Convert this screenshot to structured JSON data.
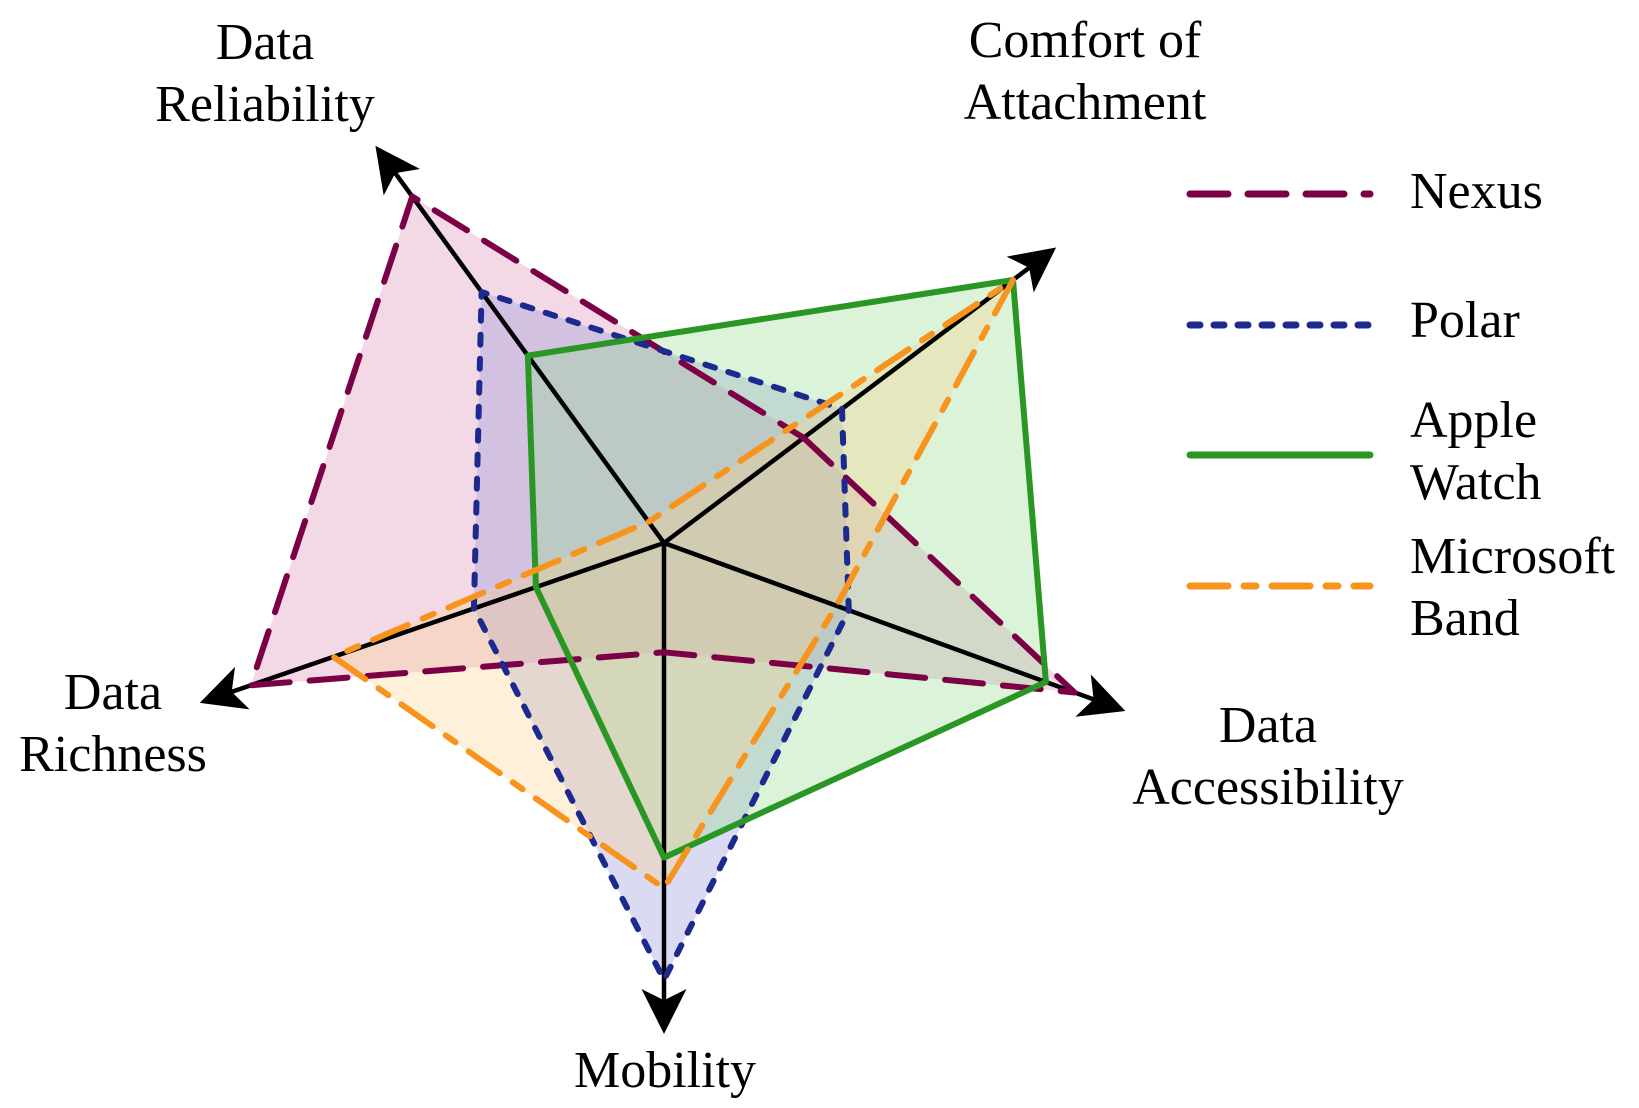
{
  "chart_data": {
    "type": "radar",
    "axes": [
      {
        "lines": [
          "Comfort of",
          "Attachment"
        ]
      },
      {
        "lines": [
          "Data",
          "Accessibility"
        ]
      },
      {
        "lines": [
          "Mobility"
        ]
      },
      {
        "lines": [
          "Data",
          "Richness"
        ]
      },
      {
        "lines": [
          "Data",
          "Reliability"
        ]
      }
    ],
    "range": [
      0,
      1
    ],
    "series": [
      {
        "name_lines": [
          "Nexus"
        ],
        "values": [
          0.4,
          1.0,
          0.25,
          1.0,
          0.98
        ],
        "color": "#7b0046",
        "fill": "#d98ab1",
        "dash": "38,20"
      },
      {
        "name_lines": [
          "Polar"
        ],
        "values": [
          0.51,
          0.45,
          1.0,
          0.46,
          0.71
        ],
        "color": "#1c2a8f",
        "fill": "#8c8fd6",
        "dash": "10,14"
      },
      {
        "name_lines": [
          "Apple",
          "Watch"
        ],
        "values": [
          1.0,
          0.93,
          0.72,
          0.31,
          0.53
        ],
        "color": "#2a9623",
        "fill": "#8ed98a",
        "dash": ""
      },
      {
        "name_lines": [
          "Microsoft",
          "Band"
        ],
        "values": [
          1.0,
          0.42,
          0.79,
          0.8,
          0.06
        ],
        "color": "#f7941d",
        "fill": "#fdd089",
        "dash": "38,16,12,16"
      }
    ]
  }
}
